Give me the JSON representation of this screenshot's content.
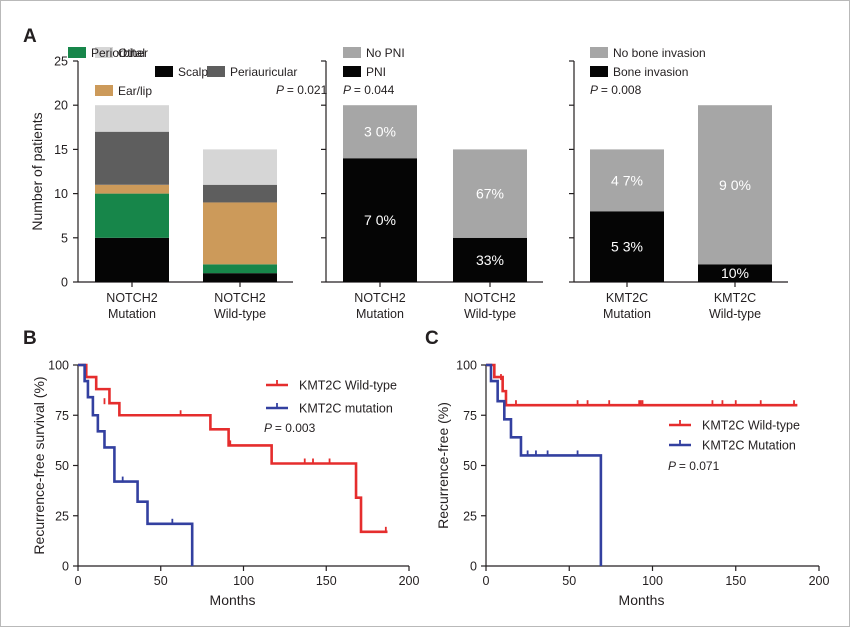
{
  "colors": {
    "Other": "#d6d6d6",
    "Periauricular": "#5e5e5e",
    "Ear/lip": "#cc9a5a",
    "Periorbital": "#17864a",
    "Scalp": "#050505",
    "No PNI": "#a6a6a6",
    "PNI": "#050505",
    "No bone invasion": "#a6a6a6",
    "Bone invasion": "#050505",
    "KMT2C Wild-type": "#e52d2d",
    "KMT2C mutation": "#3340a0"
  },
  "panels": {
    "A": "A",
    "B": "B",
    "C": "C"
  },
  "chart_data": [
    {
      "id": "A1",
      "type": "bar",
      "stacked": true,
      "ylabel": "Number of patients",
      "ylim": [
        0,
        25
      ],
      "yticks": [
        0,
        5,
        10,
        15,
        20,
        25
      ],
      "categories": [
        [
          "NOTCH2",
          "Mutation"
        ],
        [
          "NOTCH2",
          "Wild-type"
        ]
      ],
      "series": [
        {
          "name": "Scalp",
          "values": [
            5,
            1
          ]
        },
        {
          "name": "Periorbital",
          "values": [
            5,
            1
          ]
        },
        {
          "name": "Ear/lip",
          "values": [
            1,
            7
          ]
        },
        {
          "name": "Periauricular",
          "values": [
            6,
            2
          ]
        },
        {
          "name": "Other",
          "values": [
            3,
            4
          ]
        }
      ],
      "legend": [
        [
          "Other",
          "Periorbital"
        ],
        [
          "Periauricular",
          "Scalp"
        ],
        [
          "Ear/lip"
        ]
      ],
      "pvalue": "= 0.021",
      "pvalue_prefix": "P"
    },
    {
      "id": "A2",
      "type": "bar",
      "stacked": true,
      "ylim": [
        0,
        25
      ],
      "categories": [
        [
          "NOTCH2",
          "Mutation"
        ],
        [
          "NOTCH2",
          "Wild-type"
        ]
      ],
      "series": [
        {
          "name": "PNI",
          "values": [
            14,
            5
          ],
          "labels": [
            "7 0%",
            "33%"
          ]
        },
        {
          "name": "No PNI",
          "values": [
            6,
            10
          ],
          "labels": [
            "3 0%",
            "67%"
          ]
        }
      ],
      "legend": [
        [
          "No PNI"
        ],
        [
          "PNI"
        ]
      ],
      "pvalue": "= 0.044",
      "pvalue_prefix": "P"
    },
    {
      "id": "A3",
      "type": "bar",
      "stacked": true,
      "ylim": [
        0,
        25
      ],
      "categories": [
        [
          "KMT2C",
          "Mutation"
        ],
        [
          "KMT2C",
          "Wild-type"
        ]
      ],
      "series": [
        {
          "name": "Bone invasion",
          "values": [
            8,
            2
          ],
          "labels": [
            "5 3%",
            "10%"
          ]
        },
        {
          "name": "No bone invasion",
          "values": [
            7,
            18
          ],
          "labels": [
            "4 7%",
            "9 0%"
          ]
        }
      ],
      "legend": [
        [
          "No bone invasion"
        ],
        [
          "Bone invasion"
        ]
      ],
      "pvalue": "= 0.008",
      "pvalue_prefix": "P"
    },
    {
      "id": "B",
      "type": "line",
      "step": true,
      "xlabel": "Months",
      "ylabel": "Recurrence-free survival (%)",
      "xlim": [
        0,
        200
      ],
      "ylim": [
        0,
        100
      ],
      "xticks": [
        0,
        50,
        100,
        150,
        200
      ],
      "yticks": [
        0,
        25,
        50,
        75,
        100
      ],
      "series": [
        {
          "name": "KMT2C Wild-type",
          "steps": [
            [
              0,
              100
            ],
            [
              5,
              94
            ],
            [
              11,
              88
            ],
            [
              19,
              81
            ],
            [
              25,
              75
            ],
            [
              80,
              68
            ],
            [
              91,
              60
            ],
            [
              117,
              51
            ],
            [
              168,
              34
            ],
            [
              171,
              17
            ],
            [
              187,
              17
            ]
          ],
          "censored": [
            [
              16,
              81
            ],
            [
              62,
              75
            ],
            [
              92,
              60
            ],
            [
              137,
              51
            ],
            [
              142,
              51
            ],
            [
              152,
              51
            ],
            [
              186,
              17
            ]
          ]
        },
        {
          "name": "KMT2C mutation",
          "steps": [
            [
              0,
              100
            ],
            [
              4,
              92
            ],
            [
              6,
              84
            ],
            [
              9,
              75
            ],
            [
              12,
              67
            ],
            [
              16,
              59
            ],
            [
              22,
              42
            ],
            [
              36,
              32
            ],
            [
              40,
              32
            ],
            [
              42,
              21
            ],
            [
              69,
              21
            ],
            [
              69,
              0
            ]
          ],
          "censored": [
            [
              4,
              92
            ],
            [
              27,
              42
            ],
            [
              57,
              21
            ]
          ]
        }
      ],
      "pvalue": "= 0.003",
      "pvalue_prefix": "P"
    },
    {
      "id": "C",
      "type": "line",
      "step": true,
      "xlabel": "Months",
      "ylabel": "Recurrence-free (%)",
      "xlim": [
        0,
        200
      ],
      "ylim": [
        0,
        100
      ],
      "xticks": [
        0,
        50,
        100,
        150,
        200
      ],
      "yticks": [
        0,
        25,
        50,
        75,
        100
      ],
      "series": [
        {
          "name": "KMT2C Wild-type",
          "steps": [
            [
              0,
              100
            ],
            [
              5,
              94
            ],
            [
              10,
              87
            ],
            [
              12,
              80
            ],
            [
              187,
              80
            ]
          ],
          "censored": [
            [
              9,
              93
            ],
            [
              18,
              80
            ],
            [
              55,
              80
            ],
            [
              61,
              80
            ],
            [
              74,
              80
            ],
            [
              92,
              80
            ],
            [
              93,
              80
            ],
            [
              94,
              80
            ],
            [
              136,
              80
            ],
            [
              142,
              80
            ],
            [
              150,
              80
            ],
            [
              165,
              80
            ],
            [
              185,
              80
            ]
          ]
        },
        {
          "name": "KMT2C Mutation",
          "steps": [
            [
              0,
              100
            ],
            [
              3,
              92
            ],
            [
              7,
              82
            ],
            [
              11,
              73
            ],
            [
              15,
              64
            ],
            [
              21,
              55
            ],
            [
              69,
              55
            ],
            [
              69,
              0
            ]
          ],
          "censored": [
            [
              25,
              55
            ],
            [
              30,
              55
            ],
            [
              37,
              55
            ],
            [
              55,
              55
            ]
          ]
        }
      ],
      "pvalue": "= 0.071",
      "pvalue_prefix": "P"
    }
  ]
}
